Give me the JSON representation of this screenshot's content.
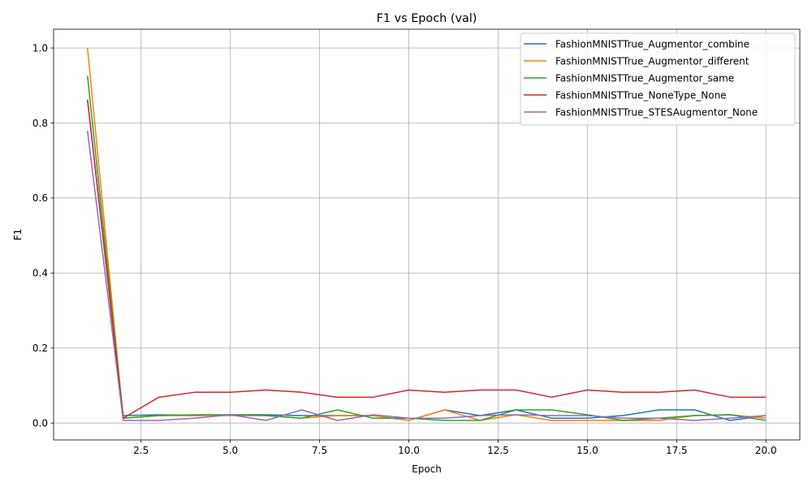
{
  "chart_data": {
    "type": "line",
    "title": "F1 vs Epoch (val)",
    "xlabel": "Epoch",
    "ylabel": "F1",
    "xlim": [
      0.05,
      20.95
    ],
    "ylim": [
      -0.045,
      1.05
    ],
    "xticks": [
      2.5,
      5.0,
      7.5,
      10.0,
      12.5,
      15.0,
      17.5,
      20.0
    ],
    "xtick_labels": [
      "2.5",
      "5.0",
      "7.5",
      "10.0",
      "12.5",
      "15.0",
      "17.5",
      "20.0"
    ],
    "yticks": [
      0.0,
      0.2,
      0.4,
      0.6,
      0.8,
      1.0
    ],
    "ytick_labels": [
      "0.0",
      "0.2",
      "0.4",
      "0.6",
      "0.8",
      "1.0"
    ],
    "grid": true,
    "legend_position": "top-right",
    "x": [
      1,
      2,
      3,
      4,
      5,
      6,
      7,
      8,
      9,
      10,
      11,
      12,
      13,
      14,
      15,
      16,
      17,
      18,
      19,
      20
    ],
    "series": [
      {
        "name": "FashionMNISTTrue_Augmentor_combine",
        "color": "#1f77b4",
        "values": [
          0.862,
          0.02,
          0.022,
          0.02,
          0.022,
          0.022,
          0.02,
          0.02,
          0.02,
          0.007,
          0.035,
          0.02,
          0.035,
          0.013,
          0.013,
          0.02,
          0.035,
          0.035,
          0.007,
          0.02
        ]
      },
      {
        "name": "FashionMNISTTrue_Augmentor_different",
        "color": "#ff7f0e",
        "values": [
          1.0,
          0.013,
          0.02,
          0.02,
          0.02,
          0.02,
          0.013,
          0.02,
          0.02,
          0.007,
          0.035,
          0.007,
          0.022,
          0.007,
          0.007,
          0.007,
          0.007,
          0.02,
          0.022,
          0.013
        ]
      },
      {
        "name": "FashionMNISTTrue_Augmentor_same",
        "color": "#2ca02c",
        "values": [
          0.926,
          0.013,
          0.02,
          0.022,
          0.022,
          0.02,
          0.013,
          0.035,
          0.013,
          0.013,
          0.007,
          0.007,
          0.035,
          0.035,
          0.022,
          0.007,
          0.013,
          0.02,
          0.022,
          0.007
        ]
      },
      {
        "name": "FashionMNISTTrue_NoneType_None",
        "color": "#d62728",
        "values": [
          0.862,
          0.013,
          0.069,
          0.082,
          0.082,
          0.088,
          0.082,
          0.069,
          0.069,
          0.088,
          0.082,
          0.088,
          0.088,
          0.069,
          0.088,
          0.082,
          0.082,
          0.088,
          0.069,
          0.069
        ]
      },
      {
        "name": "FashionMNISTTrue_STESAugmentor_None",
        "color": "#9467bd",
        "values": [
          0.779,
          0.007,
          0.007,
          0.013,
          0.022,
          0.007,
          0.035,
          0.007,
          0.022,
          0.013,
          0.013,
          0.02,
          0.022,
          0.02,
          0.02,
          0.013,
          0.013,
          0.007,
          0.013,
          0.02
        ]
      }
    ]
  }
}
